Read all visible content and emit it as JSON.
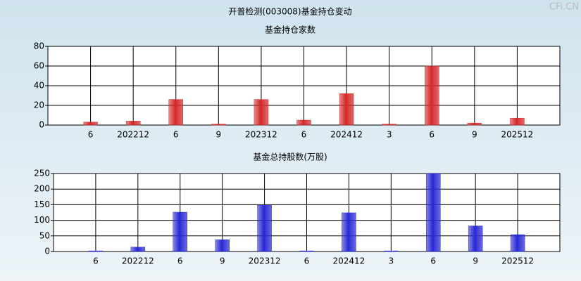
{
  "header": {
    "title": "开普检测(003008)基金持仓变动",
    "watermark": "CFi.CN"
  },
  "chart_data": [
    {
      "type": "bar",
      "title": "基金持仓家数",
      "categories": [
        "6",
        "202212",
        "6",
        "9",
        "202312",
        "6",
        "202412",
        "3",
        "6",
        "9",
        "202512"
      ],
      "values": [
        3,
        4,
        26,
        1,
        26,
        5,
        32,
        1,
        60,
        2,
        7
      ],
      "color": "#d42a2a",
      "ylim": [
        0,
        80
      ],
      "yticks": [
        0,
        20,
        40,
        60,
        80
      ],
      "grid": true
    },
    {
      "type": "bar",
      "title": "基金总持股数(万股)",
      "categories": [
        "6",
        "202212",
        "6",
        "9",
        "202312",
        "6",
        "202412",
        "3",
        "6",
        "9",
        "202512"
      ],
      "values": [
        2,
        14,
        126,
        38,
        148,
        2,
        124,
        2,
        250,
        82,
        54
      ],
      "color": "#2a2ad4",
      "ylim": [
        0,
        250
      ],
      "yticks": [
        0,
        50,
        100,
        150,
        200,
        250
      ],
      "grid": true
    }
  ]
}
